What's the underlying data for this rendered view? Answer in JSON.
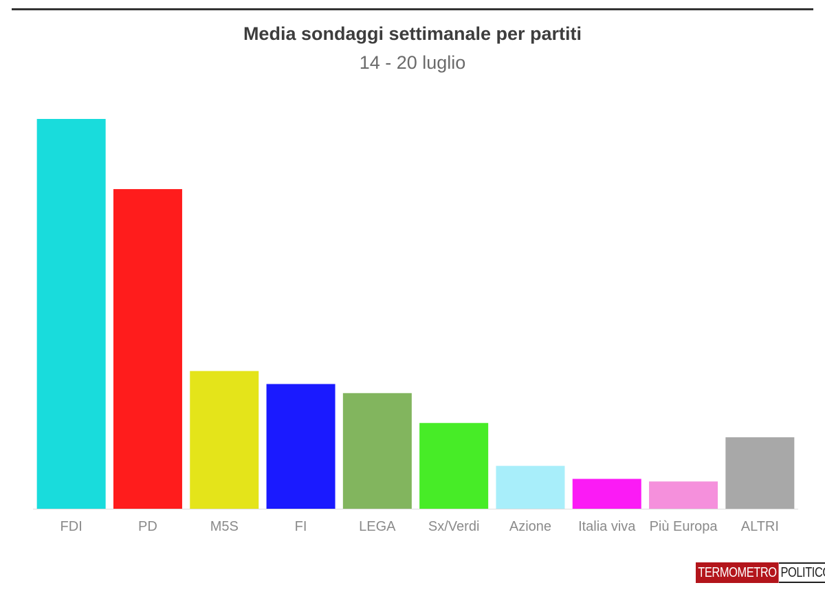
{
  "header": {
    "title": "Media sondaggi settimanale per partiti",
    "subtitle": "14 - 20 luglio"
  },
  "logo": {
    "part1": "TERMOMETRO",
    "part2": "POLITICO"
  },
  "chart_data": {
    "type": "bar",
    "title": "Media sondaggi settimanale per partiti",
    "subtitle": "14 - 20 luglio",
    "xlabel": "",
    "ylabel": "",
    "ylim": [
      0,
      30
    ],
    "grid": false,
    "categories": [
      "FDI",
      "PD",
      "M5S",
      "FI",
      "LEGA",
      "Sx/Verdi",
      "Azione",
      "Italia viva",
      "Più Europa",
      "ALTRI"
    ],
    "values": [
      30.0,
      24.6,
      10.6,
      9.6,
      8.9,
      6.6,
      3.3,
      2.3,
      2.1,
      5.5
    ],
    "colors": [
      "#19dcdc",
      "#ff1c1c",
      "#e4e41a",
      "#1a1aff",
      "#82b55e",
      "#47ec27",
      "#a8eefa",
      "#fb1bf5",
      "#f590dc",
      "#a8a8a8"
    ]
  }
}
